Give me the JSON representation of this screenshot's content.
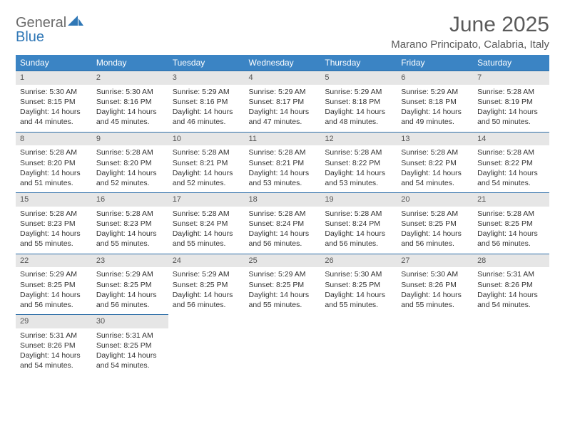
{
  "brand": {
    "part1": "General",
    "part2": "Blue"
  },
  "title": "June 2025",
  "location": "Marano Principato, Calabria, Italy",
  "colors": {
    "header_bg": "#3b84c4",
    "header_text": "#ffffff",
    "daynum_bg": "#e6e6e6",
    "row_divider": "#2f6fa8",
    "body_text": "#333333",
    "title_text": "#5a5a5a",
    "logo_gray": "#6a6a6a",
    "logo_blue": "#2f77b6"
  },
  "weekdays": [
    "Sunday",
    "Monday",
    "Tuesday",
    "Wednesday",
    "Thursday",
    "Friday",
    "Saturday"
  ],
  "days": [
    {
      "n": "1",
      "sr": "5:30 AM",
      "ss": "8:15 PM",
      "dl": "14 hours and 44 minutes."
    },
    {
      "n": "2",
      "sr": "5:30 AM",
      "ss": "8:16 PM",
      "dl": "14 hours and 45 minutes."
    },
    {
      "n": "3",
      "sr": "5:29 AM",
      "ss": "8:16 PM",
      "dl": "14 hours and 46 minutes."
    },
    {
      "n": "4",
      "sr": "5:29 AM",
      "ss": "8:17 PM",
      "dl": "14 hours and 47 minutes."
    },
    {
      "n": "5",
      "sr": "5:29 AM",
      "ss": "8:18 PM",
      "dl": "14 hours and 48 minutes."
    },
    {
      "n": "6",
      "sr": "5:29 AM",
      "ss": "8:18 PM",
      "dl": "14 hours and 49 minutes."
    },
    {
      "n": "7",
      "sr": "5:28 AM",
      "ss": "8:19 PM",
      "dl": "14 hours and 50 minutes."
    },
    {
      "n": "8",
      "sr": "5:28 AM",
      "ss": "8:20 PM",
      "dl": "14 hours and 51 minutes."
    },
    {
      "n": "9",
      "sr": "5:28 AM",
      "ss": "8:20 PM",
      "dl": "14 hours and 52 minutes."
    },
    {
      "n": "10",
      "sr": "5:28 AM",
      "ss": "8:21 PM",
      "dl": "14 hours and 52 minutes."
    },
    {
      "n": "11",
      "sr": "5:28 AM",
      "ss": "8:21 PM",
      "dl": "14 hours and 53 minutes."
    },
    {
      "n": "12",
      "sr": "5:28 AM",
      "ss": "8:22 PM",
      "dl": "14 hours and 53 minutes."
    },
    {
      "n": "13",
      "sr": "5:28 AM",
      "ss": "8:22 PM",
      "dl": "14 hours and 54 minutes."
    },
    {
      "n": "14",
      "sr": "5:28 AM",
      "ss": "8:22 PM",
      "dl": "14 hours and 54 minutes."
    },
    {
      "n": "15",
      "sr": "5:28 AM",
      "ss": "8:23 PM",
      "dl": "14 hours and 55 minutes."
    },
    {
      "n": "16",
      "sr": "5:28 AM",
      "ss": "8:23 PM",
      "dl": "14 hours and 55 minutes."
    },
    {
      "n": "17",
      "sr": "5:28 AM",
      "ss": "8:24 PM",
      "dl": "14 hours and 55 minutes."
    },
    {
      "n": "18",
      "sr": "5:28 AM",
      "ss": "8:24 PM",
      "dl": "14 hours and 56 minutes."
    },
    {
      "n": "19",
      "sr": "5:28 AM",
      "ss": "8:24 PM",
      "dl": "14 hours and 56 minutes."
    },
    {
      "n": "20",
      "sr": "5:28 AM",
      "ss": "8:25 PM",
      "dl": "14 hours and 56 minutes."
    },
    {
      "n": "21",
      "sr": "5:28 AM",
      "ss": "8:25 PM",
      "dl": "14 hours and 56 minutes."
    },
    {
      "n": "22",
      "sr": "5:29 AM",
      "ss": "8:25 PM",
      "dl": "14 hours and 56 minutes."
    },
    {
      "n": "23",
      "sr": "5:29 AM",
      "ss": "8:25 PM",
      "dl": "14 hours and 56 minutes."
    },
    {
      "n": "24",
      "sr": "5:29 AM",
      "ss": "8:25 PM",
      "dl": "14 hours and 56 minutes."
    },
    {
      "n": "25",
      "sr": "5:29 AM",
      "ss": "8:25 PM",
      "dl": "14 hours and 55 minutes."
    },
    {
      "n": "26",
      "sr": "5:30 AM",
      "ss": "8:25 PM",
      "dl": "14 hours and 55 minutes."
    },
    {
      "n": "27",
      "sr": "5:30 AM",
      "ss": "8:26 PM",
      "dl": "14 hours and 55 minutes."
    },
    {
      "n": "28",
      "sr": "5:31 AM",
      "ss": "8:26 PM",
      "dl": "14 hours and 54 minutes."
    },
    {
      "n": "29",
      "sr": "5:31 AM",
      "ss": "8:26 PM",
      "dl": "14 hours and 54 minutes."
    },
    {
      "n": "30",
      "sr": "5:31 AM",
      "ss": "8:25 PM",
      "dl": "14 hours and 54 minutes."
    }
  ],
  "labels": {
    "sunrise": "Sunrise:",
    "sunset": "Sunset:",
    "daylight": "Daylight:"
  }
}
